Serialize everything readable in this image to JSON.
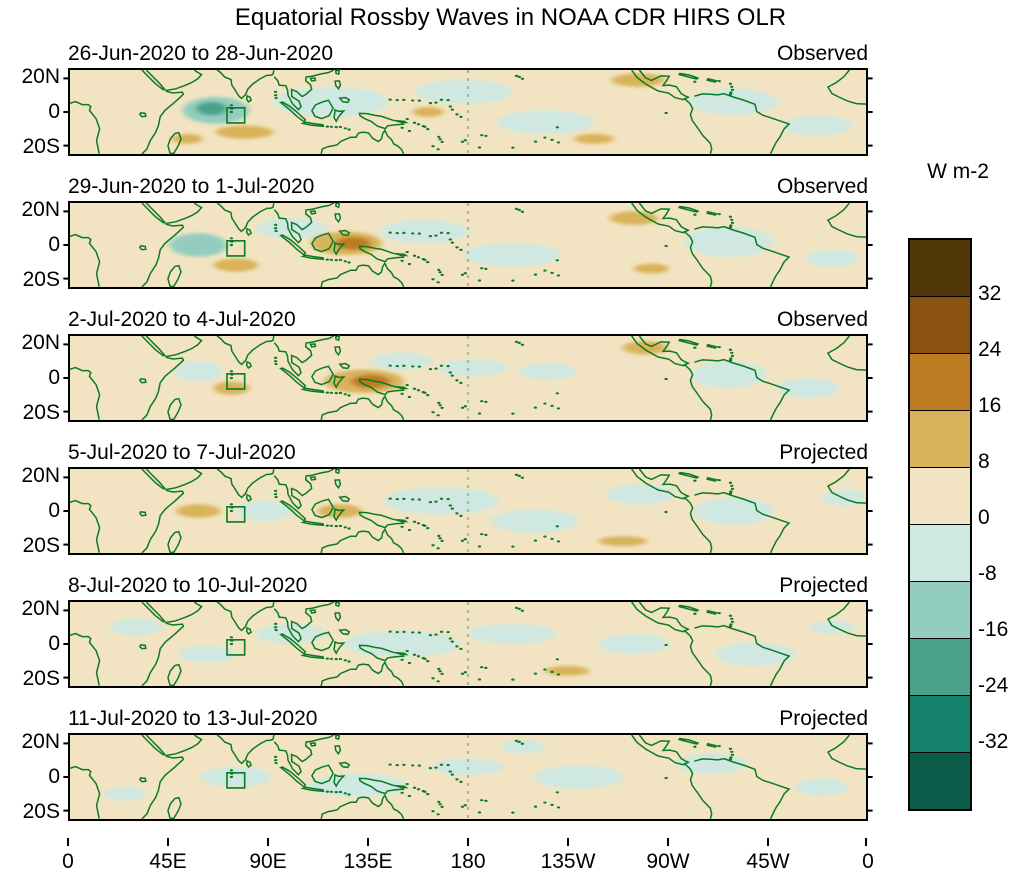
{
  "title": "Equatorial Rossby Waves in NOAA CDR HIRS OLR",
  "chart_data": {
    "type": "heatmap",
    "subtype": "filled-contour longitude-latitude map panels",
    "units_label": "W m-2",
    "x_axis": {
      "ticks": [
        "0",
        "45E",
        "90E",
        "135E",
        "180",
        "135W",
        "90W",
        "45W",
        "0"
      ],
      "lon_range": [
        0,
        360
      ]
    },
    "y_axis": {
      "ticks": [
        "20N",
        "0",
        "20S"
      ],
      "lat_range": [
        25,
        -25
      ]
    },
    "colorbar": {
      "levels": [
        32,
        24,
        16,
        8,
        0,
        -8,
        -16,
        -24,
        -32
      ],
      "colors_top_to_bottom": [
        "#503606",
        "#8a5410",
        "#bd7c22",
        "#d9b35a",
        "#f2e4c2",
        "#cfe8e1",
        "#93cdc0",
        "#4aa189",
        "#14816a",
        "#0b5c49"
      ]
    },
    "level_colors": {
      "2": "#bd7c22",
      "1": "#d9b35a",
      "0": "#f2e4c2",
      "-1": "#cfe8e1",
      "-2": "#93cdc0",
      "-3": "#4aa189"
    },
    "dateline_lon": 180,
    "region_box": {
      "lon_min": 71,
      "lon_max": 79,
      "lat_min": -6.5,
      "lat_max": 2.5
    },
    "anomaly_format": "[lon_deg_east, lat_deg, rx_deg, ry_deg, level_index]",
    "panels": [
      {
        "date_range": "26-Jun-2020 to 28-Jun-2020",
        "label": "Observed",
        "anomalies": [
          [
            118,
            6,
            26,
            9,
            -1
          ],
          [
            178,
            12,
            22,
            7,
            -1
          ],
          [
            215,
            -6,
            22,
            7,
            -1
          ],
          [
            300,
            6,
            20,
            8,
            -1
          ],
          [
            338,
            -8,
            16,
            6,
            -1
          ],
          [
            66,
            1,
            15,
            8,
            -2
          ],
          [
            64,
            2,
            7,
            4,
            -3
          ],
          [
            79,
            -12,
            13,
            4,
            1
          ],
          [
            53,
            -16,
            7,
            3,
            1
          ],
          [
            162,
            0,
            7,
            3,
            1
          ],
          [
            257,
            19,
            12,
            4,
            1
          ],
          [
            237,
            -16,
            9,
            3,
            1
          ]
        ]
      },
      {
        "date_range": "29-Jun-2020 to 1-Jul-2020",
        "label": "Observed",
        "anomalies": [
          [
            58,
            0,
            13,
            7,
            -2
          ],
          [
            100,
            10,
            16,
            6,
            -1
          ],
          [
            160,
            8,
            20,
            7,
            -1
          ],
          [
            200,
            -6,
            22,
            7,
            -1
          ],
          [
            298,
            2,
            20,
            9,
            -1
          ],
          [
            345,
            -8,
            12,
            5,
            -1
          ],
          [
            125,
            1,
            16,
            7,
            1
          ],
          [
            128,
            1,
            8,
            4,
            2
          ],
          [
            75,
            -12,
            10,
            4,
            1
          ],
          [
            255,
            16,
            11,
            4,
            1
          ],
          [
            263,
            -14,
            8,
            3,
            1
          ]
        ]
      },
      {
        "date_range": "2-Jul-2020 to 4-Jul-2020",
        "label": "Observed",
        "anomalies": [
          [
            58,
            4,
            11,
            6,
            -1
          ],
          [
            150,
            10,
            14,
            5,
            -1
          ],
          [
            182,
            6,
            16,
            5,
            -1
          ],
          [
            216,
            4,
            13,
            5,
            -1
          ],
          [
            298,
            2,
            17,
            8,
            -1
          ],
          [
            334,
            -6,
            14,
            6,
            -1
          ],
          [
            133,
            -2,
            18,
            7,
            1
          ],
          [
            136,
            -2,
            9,
            4,
            2
          ],
          [
            73,
            -6,
            8,
            4,
            1
          ],
          [
            260,
            18,
            10,
            4,
            1
          ]
        ]
      },
      {
        "date_range": "5-Jul-2020 to 7-Jul-2020",
        "label": "Projected",
        "anomalies": [
          [
            88,
            0,
            13,
            6,
            -1
          ],
          [
            168,
            6,
            26,
            8,
            -1
          ],
          [
            210,
            -6,
            20,
            7,
            -1
          ],
          [
            258,
            10,
            16,
            6,
            -1
          ],
          [
            300,
            0,
            18,
            8,
            -1
          ],
          [
            350,
            8,
            10,
            5,
            -1
          ],
          [
            58,
            0,
            10,
            4,
            1
          ],
          [
            122,
            0,
            10,
            4,
            1
          ],
          [
            250,
            -18,
            11,
            3,
            1
          ]
        ]
      },
      {
        "date_range": "8-Jul-2020 to 10-Jul-2020",
        "label": "Projected",
        "anomalies": [
          [
            30,
            10,
            12,
            5,
            -1
          ],
          [
            62,
            -6,
            13,
            5,
            -1
          ],
          [
            100,
            6,
            16,
            6,
            -1
          ],
          [
            150,
            0,
            26,
            8,
            -1
          ],
          [
            200,
            6,
            20,
            6,
            -1
          ],
          [
            255,
            0,
            16,
            6,
            -1
          ],
          [
            310,
            -6,
            18,
            7,
            -1
          ],
          [
            345,
            10,
            10,
            4,
            -1
          ],
          [
            225,
            -16,
            10,
            3,
            1
          ]
        ]
      },
      {
        "date_range": "11-Jul-2020 to 13-Jul-2020",
        "label": "Projected",
        "anomalies": [
          [
            75,
            0,
            16,
            6,
            -1
          ],
          [
            130,
            -5,
            22,
            7,
            -1
          ],
          [
            180,
            6,
            16,
            5,
            -1
          ],
          [
            230,
            0,
            20,
            7,
            -1
          ],
          [
            290,
            8,
            16,
            6,
            -1
          ],
          [
            340,
            -6,
            12,
            5,
            -1
          ],
          [
            25,
            -10,
            10,
            4,
            -1
          ],
          [
            205,
            18,
            10,
            4,
            -1
          ]
        ]
      }
    ]
  }
}
